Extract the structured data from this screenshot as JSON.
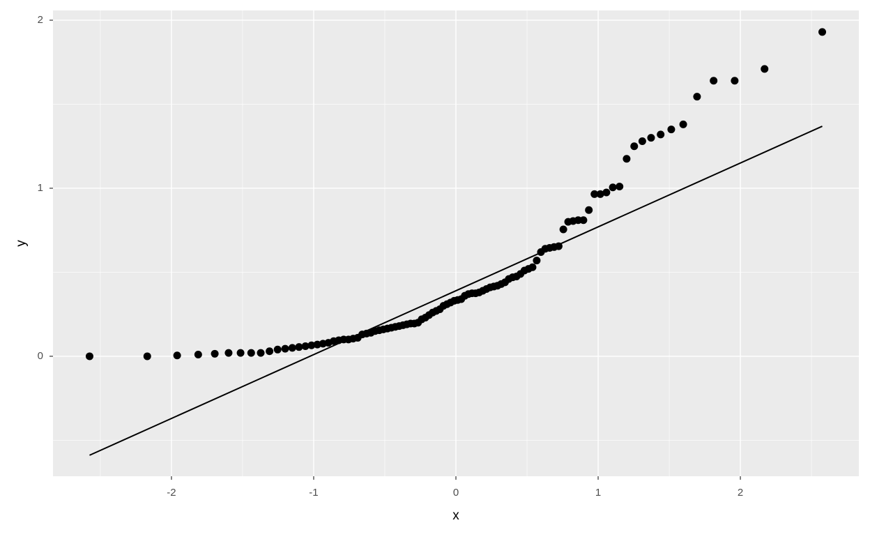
{
  "chart_data": {
    "type": "scatter",
    "xlabel": "x",
    "ylabel": "y",
    "x": [
      -2.5758,
      -2.1701,
      -1.96,
      -1.8119,
      -1.6954,
      -1.5982,
      -1.5141,
      -1.4395,
      -1.3722,
      -1.3106,
      -1.2536,
      -1.2004,
      -1.1503,
      -1.1031,
      -1.0581,
      -1.0152,
      -0.9741,
      -0.9346,
      -0.8965,
      -0.8596,
      -0.8239,
      -0.7892,
      -0.7554,
      -0.7225,
      -0.6903,
      -0.6588,
      -0.628,
      -0.5978,
      -0.5681,
      -0.5388,
      -0.5101,
      -0.4817,
      -0.4538,
      -0.4261,
      -0.3989,
      -0.3719,
      -0.3451,
      -0.3186,
      -0.2924,
      -0.2663,
      -0.2404,
      -0.2147,
      -0.1891,
      -0.1637,
      -0.1383,
      -0.113,
      -0.0878,
      -0.0627,
      -0.0376,
      -0.0125,
      0.0125,
      0.0376,
      0.0627,
      0.0878,
      0.113,
      0.1383,
      0.1637,
      0.1891,
      0.2147,
      0.2404,
      0.2663,
      0.2924,
      0.3186,
      0.3451,
      0.3719,
      0.3989,
      0.4261,
      0.4538,
      0.4817,
      0.5101,
      0.5388,
      0.5681,
      0.5978,
      0.628,
      0.6588,
      0.6903,
      0.7225,
      0.7554,
      0.7892,
      0.8239,
      0.8596,
      0.8965,
      0.9346,
      0.9741,
      1.0152,
      1.0581,
      1.1031,
      1.1503,
      1.2004,
      1.2536,
      1.3106,
      1.3722,
      1.4395,
      1.5141,
      1.5982,
      1.6954,
      1.8119,
      1.96,
      2.1701,
      2.5758
    ],
    "series": [
      {
        "color": "#000000",
        "values": [
          0.0,
          0.0,
          0.005,
          0.01,
          0.015,
          0.02,
          0.02,
          0.02,
          0.02,
          0.03,
          0.04,
          0.045,
          0.05,
          0.055,
          0.06,
          0.065,
          0.07,
          0.075,
          0.08,
          0.09,
          0.095,
          0.1,
          0.1,
          0.105,
          0.11,
          0.13,
          0.135,
          0.14,
          0.15,
          0.155,
          0.16,
          0.165,
          0.17,
          0.175,
          0.18,
          0.185,
          0.19,
          0.195,
          0.195,
          0.2,
          0.22,
          0.23,
          0.245,
          0.26,
          0.27,
          0.28,
          0.3,
          0.31,
          0.32,
          0.33,
          0.335,
          0.34,
          0.36,
          0.37,
          0.375,
          0.375,
          0.38,
          0.39,
          0.4,
          0.41,
          0.415,
          0.42,
          0.43,
          0.44,
          0.46,
          0.47,
          0.475,
          0.49,
          0.51,
          0.52,
          0.53,
          0.57,
          0.62,
          0.64,
          0.645,
          0.65,
          0.655,
          0.755,
          0.8,
          0.805,
          0.81,
          0.81,
          0.87,
          0.965,
          0.965,
          0.975,
          1.005,
          1.01,
          1.175,
          1.25,
          1.28,
          1.3,
          1.32,
          1.35,
          1.38,
          1.545,
          1.64,
          1.64,
          1.71,
          1.93
        ]
      }
    ],
    "reference_line": {
      "color": "#000000",
      "x": [
        -2.5758,
        2.5758
      ],
      "y": [
        -0.589,
        1.369
      ]
    },
    "xlim": [
      -2.833,
      2.833
    ],
    "ylim": [
      -0.714,
      2.058
    ],
    "xticks": [
      -2,
      -1,
      0,
      1,
      2
    ],
    "yticks": [
      0,
      1,
      2
    ],
    "grid": true
  }
}
